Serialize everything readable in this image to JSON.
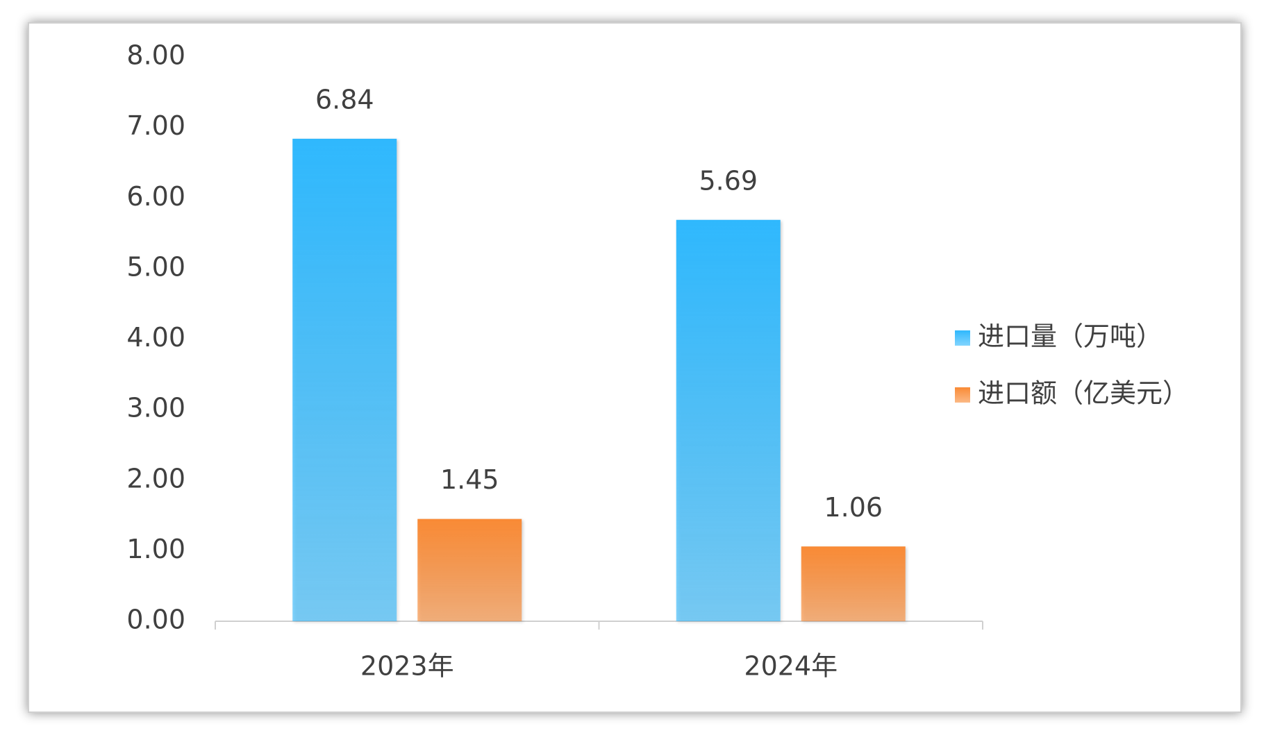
{
  "chart_data": {
    "type": "bar",
    "categories": [
      "2023年",
      "2024年"
    ],
    "series": [
      {
        "name": "进口量（万吨）",
        "color": "#2fb8fd",
        "values": [
          6.84,
          5.69
        ]
      },
      {
        "name": "进口额（亿美元）",
        "color": "#f98a35",
        "values": [
          1.45,
          1.06
        ]
      }
    ],
    "ylim": [
      0,
      8
    ],
    "yticks": [
      {
        "value": 0,
        "label": "0.00"
      },
      {
        "value": 1,
        "label": "1.00"
      },
      {
        "value": 2,
        "label": "2.00"
      },
      {
        "value": 3,
        "label": "3.00"
      },
      {
        "value": 4,
        "label": "4.00"
      },
      {
        "value": 5,
        "label": "5.00"
      },
      {
        "value": 6,
        "label": "6.00"
      },
      {
        "value": 7,
        "label": "7.00"
      },
      {
        "value": 8,
        "label": "8.00"
      }
    ],
    "grid": false,
    "legend": "right"
  }
}
